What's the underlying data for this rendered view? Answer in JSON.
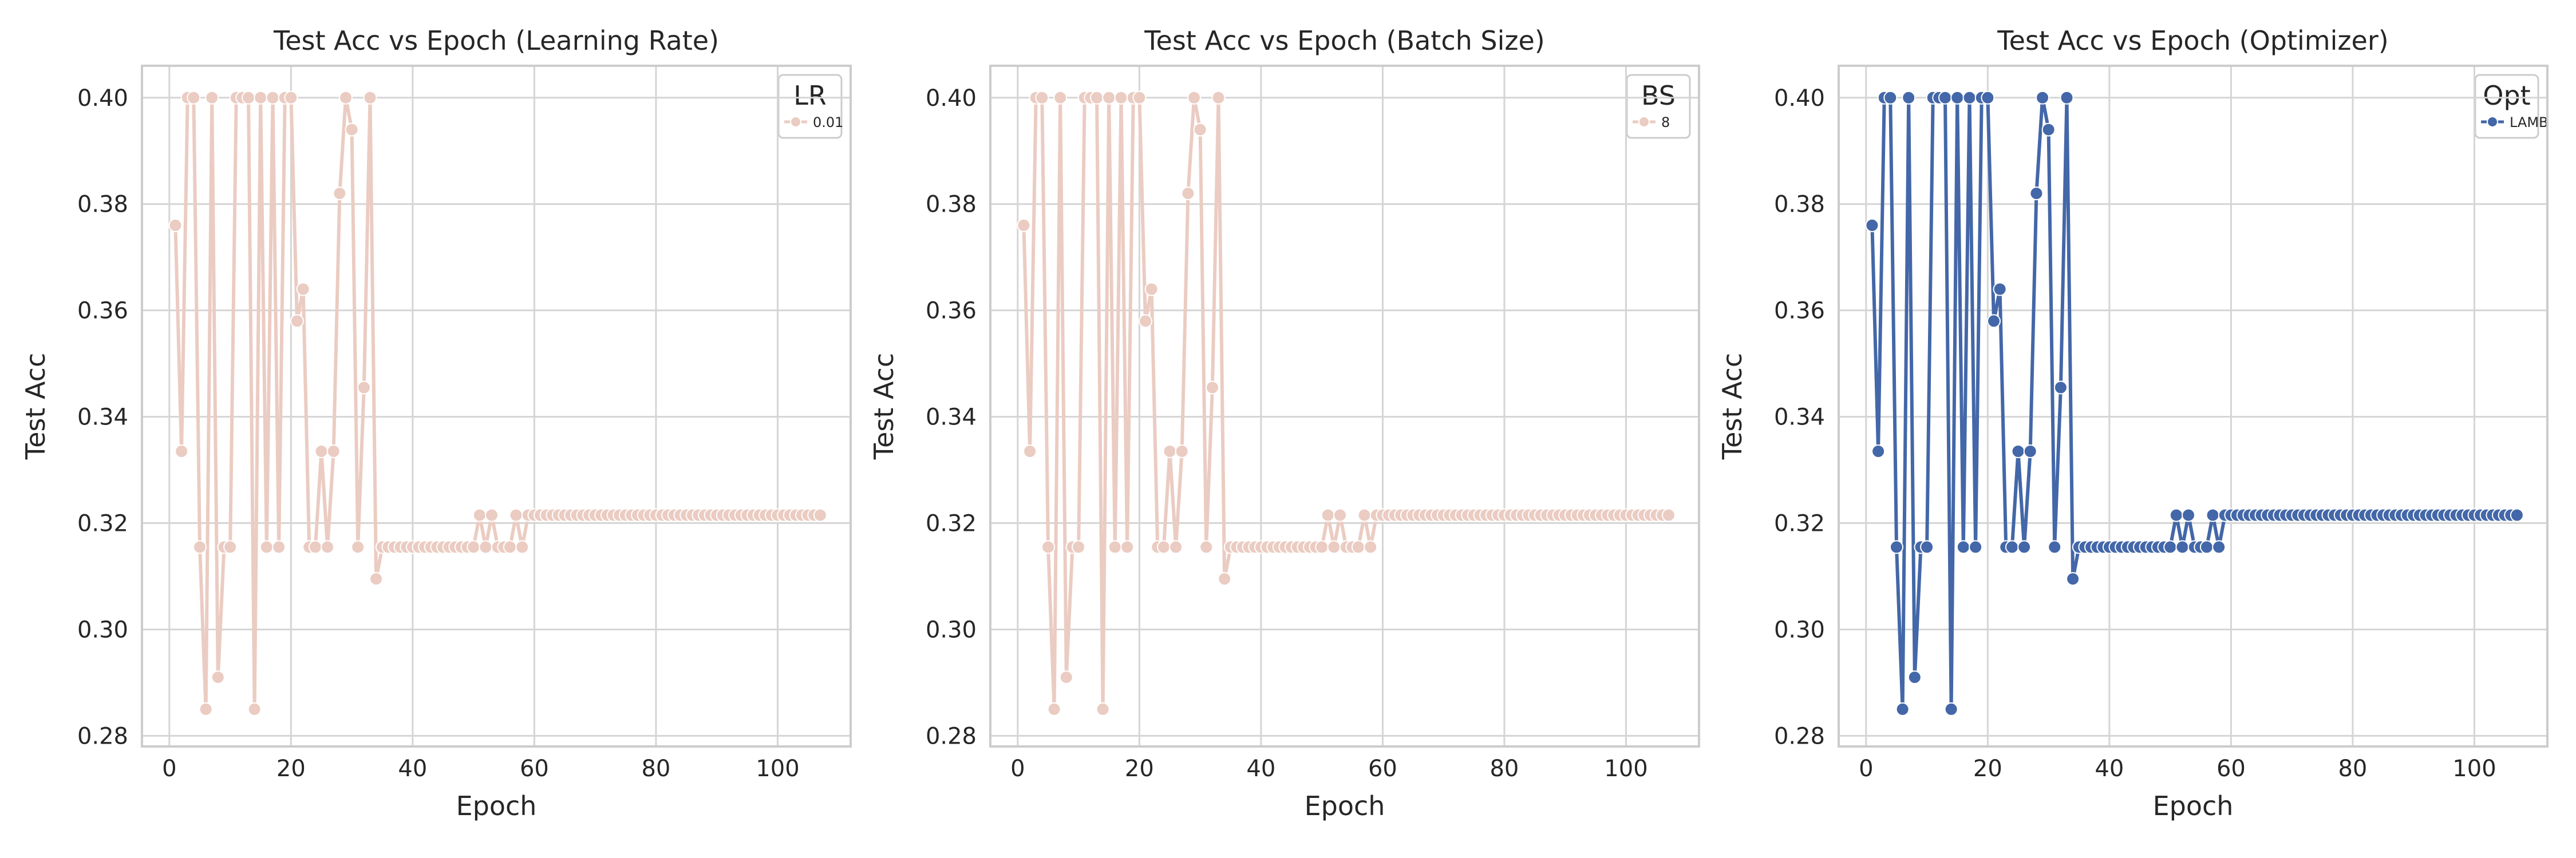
{
  "chart_data": [
    {
      "type": "line",
      "title": "Test Acc vs Epoch (Learning Rate)",
      "xlabel": "Epoch",
      "ylabel": "Test Acc",
      "xlim": [
        -4.5,
        112
      ],
      "ylim": [
        0.278,
        0.406
      ],
      "xticks": [
        "0",
        "20",
        "40",
        "60",
        "80",
        "100"
      ],
      "yticks": [
        "0.28",
        "0.30",
        "0.32",
        "0.34",
        "0.36",
        "0.38",
        "0.40"
      ],
      "grid": true,
      "legend_title": "LR",
      "legend_position": "top-right",
      "color": "#ebccc2",
      "series": [
        {
          "name": "0.01",
          "x": [
            1,
            2,
            3,
            4,
            5,
            6,
            7,
            8,
            9,
            10,
            11,
            12,
            13,
            14,
            15,
            16,
            17,
            18,
            19,
            20,
            21,
            22,
            23,
            24,
            25,
            26,
            27,
            28,
            29,
            30,
            31,
            32,
            33,
            34,
            35,
            36,
            37,
            38,
            39,
            40,
            41,
            42,
            43,
            44,
            45,
            46,
            47,
            48,
            49,
            50,
            51,
            52,
            53,
            54,
            55,
            56,
            57,
            58,
            59,
            60,
            61,
            62,
            63,
            64,
            65,
            66,
            67,
            68,
            69,
            70,
            71,
            72,
            73,
            74,
            75,
            76,
            77,
            78,
            79,
            80,
            81,
            82,
            83,
            84,
            85,
            86,
            87,
            88,
            89,
            90,
            91,
            92,
            93,
            94,
            95,
            96,
            97,
            98,
            99,
            100,
            101,
            102,
            103,
            104,
            105,
            106,
            107
          ],
          "values": [
            0.376,
            0.3335,
            0.4,
            0.4,
            0.3155,
            0.285,
            0.4,
            0.291,
            0.3155,
            0.3155,
            0.4,
            0.4,
            0.4,
            0.285,
            0.4,
            0.3155,
            0.4,
            0.3155,
            0.4,
            0.4,
            0.358,
            0.364,
            0.3155,
            0.3155,
            0.3335,
            0.3155,
            0.3335,
            0.382,
            0.4,
            0.394,
            0.3155,
            0.3455,
            0.4,
            0.3095,
            0.3155,
            0.3155,
            0.3155,
            0.3155,
            0.3155,
            0.3155,
            0.3155,
            0.3155,
            0.3155,
            0.3155,
            0.3155,
            0.3155,
            0.3155,
            0.3155,
            0.3155,
            0.3155,
            0.3215,
            0.3155,
            0.3215,
            0.3155,
            0.3155,
            0.3155,
            0.3215,
            0.3155,
            0.3215,
            0.3215,
            0.3215,
            0.3215,
            0.3215,
            0.3215,
            0.3215,
            0.3215,
            0.3215,
            0.3215,
            0.3215,
            0.3215,
            0.3215,
            0.3215,
            0.3215,
            0.3215,
            0.3215,
            0.3215,
            0.3215,
            0.3215,
            0.3215,
            0.3215,
            0.3215,
            0.3215,
            0.3215,
            0.3215,
            0.3215,
            0.3215,
            0.3215,
            0.3215,
            0.3215,
            0.3215,
            0.3215,
            0.3215,
            0.3215,
            0.3215,
            0.3215,
            0.3215,
            0.3215,
            0.3215,
            0.3215,
            0.3215,
            0.3215,
            0.3215,
            0.3215,
            0.3215,
            0.3215,
            0.3215,
            0.3215
          ]
        }
      ]
    },
    {
      "type": "line",
      "title": "Test Acc vs Epoch (Batch Size)",
      "xlabel": "Epoch",
      "ylabel": "Test Acc",
      "xlim": [
        -4.5,
        112
      ],
      "ylim": [
        0.278,
        0.406
      ],
      "xticks": [
        "0",
        "20",
        "40",
        "60",
        "80",
        "100"
      ],
      "yticks": [
        "0.28",
        "0.30",
        "0.32",
        "0.34",
        "0.36",
        "0.38",
        "0.40"
      ],
      "grid": true,
      "legend_title": "BS",
      "legend_position": "top-right",
      "color": "#ebccc2",
      "series": [
        {
          "name": "8",
          "x": [
            1,
            2,
            3,
            4,
            5,
            6,
            7,
            8,
            9,
            10,
            11,
            12,
            13,
            14,
            15,
            16,
            17,
            18,
            19,
            20,
            21,
            22,
            23,
            24,
            25,
            26,
            27,
            28,
            29,
            30,
            31,
            32,
            33,
            34,
            35,
            36,
            37,
            38,
            39,
            40,
            41,
            42,
            43,
            44,
            45,
            46,
            47,
            48,
            49,
            50,
            51,
            52,
            53,
            54,
            55,
            56,
            57,
            58,
            59,
            60,
            61,
            62,
            63,
            64,
            65,
            66,
            67,
            68,
            69,
            70,
            71,
            72,
            73,
            74,
            75,
            76,
            77,
            78,
            79,
            80,
            81,
            82,
            83,
            84,
            85,
            86,
            87,
            88,
            89,
            90,
            91,
            92,
            93,
            94,
            95,
            96,
            97,
            98,
            99,
            100,
            101,
            102,
            103,
            104,
            105,
            106,
            107
          ],
          "values": [
            0.376,
            0.3335,
            0.4,
            0.4,
            0.3155,
            0.285,
            0.4,
            0.291,
            0.3155,
            0.3155,
            0.4,
            0.4,
            0.4,
            0.285,
            0.4,
            0.3155,
            0.4,
            0.3155,
            0.4,
            0.4,
            0.358,
            0.364,
            0.3155,
            0.3155,
            0.3335,
            0.3155,
            0.3335,
            0.382,
            0.4,
            0.394,
            0.3155,
            0.3455,
            0.4,
            0.3095,
            0.3155,
            0.3155,
            0.3155,
            0.3155,
            0.3155,
            0.3155,
            0.3155,
            0.3155,
            0.3155,
            0.3155,
            0.3155,
            0.3155,
            0.3155,
            0.3155,
            0.3155,
            0.3155,
            0.3215,
            0.3155,
            0.3215,
            0.3155,
            0.3155,
            0.3155,
            0.3215,
            0.3155,
            0.3215,
            0.3215,
            0.3215,
            0.3215,
            0.3215,
            0.3215,
            0.3215,
            0.3215,
            0.3215,
            0.3215,
            0.3215,
            0.3215,
            0.3215,
            0.3215,
            0.3215,
            0.3215,
            0.3215,
            0.3215,
            0.3215,
            0.3215,
            0.3215,
            0.3215,
            0.3215,
            0.3215,
            0.3215,
            0.3215,
            0.3215,
            0.3215,
            0.3215,
            0.3215,
            0.3215,
            0.3215,
            0.3215,
            0.3215,
            0.3215,
            0.3215,
            0.3215,
            0.3215,
            0.3215,
            0.3215,
            0.3215,
            0.3215,
            0.3215,
            0.3215,
            0.3215,
            0.3215,
            0.3215,
            0.3215,
            0.3215
          ]
        }
      ]
    },
    {
      "type": "line",
      "title": "Test Acc vs Epoch (Optimizer)",
      "xlabel": "Epoch",
      "ylabel": "Test Acc",
      "xlim": [
        -4.5,
        112
      ],
      "ylim": [
        0.278,
        0.406
      ],
      "xticks": [
        "0",
        "20",
        "40",
        "60",
        "80",
        "100"
      ],
      "yticks": [
        "0.28",
        "0.30",
        "0.32",
        "0.34",
        "0.36",
        "0.38",
        "0.40"
      ],
      "grid": true,
      "legend_title": "Opt",
      "legend_position": "top-right",
      "color": "#4367a8",
      "series": [
        {
          "name": "LAMB",
          "x": [
            1,
            2,
            3,
            4,
            5,
            6,
            7,
            8,
            9,
            10,
            11,
            12,
            13,
            14,
            15,
            16,
            17,
            18,
            19,
            20,
            21,
            22,
            23,
            24,
            25,
            26,
            27,
            28,
            29,
            30,
            31,
            32,
            33,
            34,
            35,
            36,
            37,
            38,
            39,
            40,
            41,
            42,
            43,
            44,
            45,
            46,
            47,
            48,
            49,
            50,
            51,
            52,
            53,
            54,
            55,
            56,
            57,
            58,
            59,
            60,
            61,
            62,
            63,
            64,
            65,
            66,
            67,
            68,
            69,
            70,
            71,
            72,
            73,
            74,
            75,
            76,
            77,
            78,
            79,
            80,
            81,
            82,
            83,
            84,
            85,
            86,
            87,
            88,
            89,
            90,
            91,
            92,
            93,
            94,
            95,
            96,
            97,
            98,
            99,
            100,
            101,
            102,
            103,
            104,
            105,
            106,
            107
          ],
          "values": [
            0.376,
            0.3335,
            0.4,
            0.4,
            0.3155,
            0.285,
            0.4,
            0.291,
            0.3155,
            0.3155,
            0.4,
            0.4,
            0.4,
            0.285,
            0.4,
            0.3155,
            0.4,
            0.3155,
            0.4,
            0.4,
            0.358,
            0.364,
            0.3155,
            0.3155,
            0.3335,
            0.3155,
            0.3335,
            0.382,
            0.4,
            0.394,
            0.3155,
            0.3455,
            0.4,
            0.3095,
            0.3155,
            0.3155,
            0.3155,
            0.3155,
            0.3155,
            0.3155,
            0.3155,
            0.3155,
            0.3155,
            0.3155,
            0.3155,
            0.3155,
            0.3155,
            0.3155,
            0.3155,
            0.3155,
            0.3215,
            0.3155,
            0.3215,
            0.3155,
            0.3155,
            0.3155,
            0.3215,
            0.3155,
            0.3215,
            0.3215,
            0.3215,
            0.3215,
            0.3215,
            0.3215,
            0.3215,
            0.3215,
            0.3215,
            0.3215,
            0.3215,
            0.3215,
            0.3215,
            0.3215,
            0.3215,
            0.3215,
            0.3215,
            0.3215,
            0.3215,
            0.3215,
            0.3215,
            0.3215,
            0.3215,
            0.3215,
            0.3215,
            0.3215,
            0.3215,
            0.3215,
            0.3215,
            0.3215,
            0.3215,
            0.3215,
            0.3215,
            0.3215,
            0.3215,
            0.3215,
            0.3215,
            0.3215,
            0.3215,
            0.3215,
            0.3215,
            0.3215,
            0.3215,
            0.3215,
            0.3215,
            0.3215,
            0.3215,
            0.3215,
            0.3215
          ]
        }
      ]
    }
  ]
}
